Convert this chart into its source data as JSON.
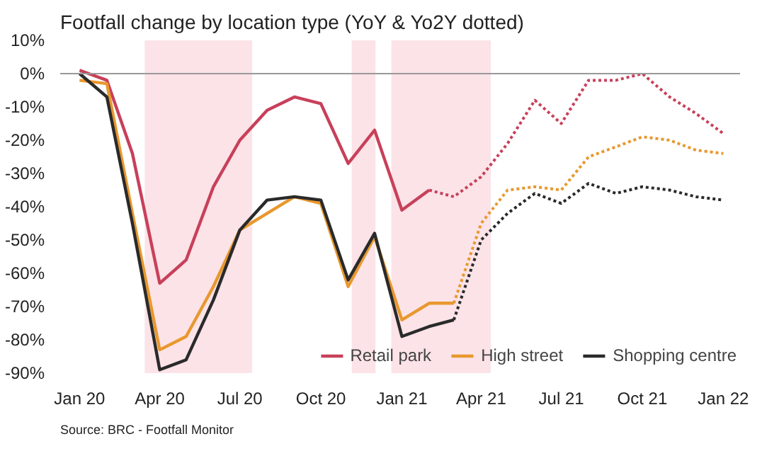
{
  "chart_data": {
    "type": "line",
    "title": "Footfall change by location type (YoY & Yo2Y dotted)",
    "annotations": [
      "Source: BRC - Footfall Monitor"
    ],
    "ylim": [
      -90,
      10
    ],
    "yticks": [
      {
        "value": 10,
        "label": "10%"
      },
      {
        "value": 0,
        "label": "0%"
      },
      {
        "value": -10,
        "label": "-10%"
      },
      {
        "value": -20,
        "label": "-20%"
      },
      {
        "value": -30,
        "label": "-30%"
      },
      {
        "value": -40,
        "label": "-40%"
      },
      {
        "value": -50,
        "label": "-50%"
      },
      {
        "value": -60,
        "label": "-60%"
      },
      {
        "value": -70,
        "label": "-70%"
      },
      {
        "value": -80,
        "label": "-80%"
      },
      {
        "value": -90,
        "label": "-90%"
      }
    ],
    "xlim": [
      "2019-12-10",
      "2022-01-20"
    ],
    "xticks": [
      {
        "value": "2020-01",
        "label": "Jan 20"
      },
      {
        "value": "2020-04",
        "label": "Apr 20"
      },
      {
        "value": "2020-07",
        "label": "Jul 20"
      },
      {
        "value": "2020-10",
        "label": "Oct 20"
      },
      {
        "value": "2021-01",
        "label": "Jan 21"
      },
      {
        "value": "2021-04",
        "label": "Apr 21"
      },
      {
        "value": "2021-07",
        "label": "Jul 21"
      },
      {
        "value": "2021-10",
        "label": "Oct 21"
      },
      {
        "value": "2022-01",
        "label": "Jan 22"
      }
    ],
    "grid": false,
    "legend": "bottom right",
    "ref_lines": [
      {
        "axis": "y",
        "value": 0,
        "color": "#999999"
      }
    ],
    "bands": [
      {
        "axis": "x",
        "from": "2020-03-15",
        "to": "2020-07-15",
        "color": "#fbe3e8"
      },
      {
        "axis": "x",
        "from": "2020-11-05",
        "to": "2020-12-02",
        "color": "#fbe3e8"
      },
      {
        "axis": "x",
        "from": "2020-12-20",
        "to": "2021-04-12",
        "color": "#fbe3e8"
      }
    ],
    "series": [
      {
        "name": "Retail park",
        "color": "#c8405a",
        "line_style": "solid",
        "x": [
          "2020-01",
          "2020-02",
          "2020-03",
          "2020-04",
          "2020-05",
          "2020-06",
          "2020-07",
          "2020-08",
          "2020-09",
          "2020-10",
          "2020-11",
          "2020-12",
          "2021-01",
          "2021-02"
        ],
        "values": [
          1,
          -2,
          -24,
          -63,
          -56,
          -34,
          -20,
          -11,
          -7,
          -9,
          -27,
          -17,
          -41,
          -35
        ]
      },
      {
        "name": "High street",
        "color": "#e8982e",
        "line_style": "solid",
        "x": [
          "2020-01",
          "2020-02",
          "2020-03",
          "2020-04",
          "2020-05",
          "2020-06",
          "2020-07",
          "2020-08",
          "2020-09",
          "2020-10",
          "2020-11",
          "2020-12",
          "2021-01",
          "2021-02",
          "2021-03"
        ],
        "values": [
          -2,
          -3,
          -42,
          -83,
          -79,
          -64,
          -47,
          -42,
          -37,
          -39,
          -64,
          -49,
          -74,
          -69,
          -69
        ]
      },
      {
        "name": "Shopping centre",
        "color": "#2a2a2a",
        "line_style": "solid",
        "x": [
          "2020-01",
          "2020-02",
          "2020-03",
          "2020-04",
          "2020-05",
          "2020-06",
          "2020-07",
          "2020-08",
          "2020-09",
          "2020-10",
          "2020-11",
          "2020-12",
          "2021-01",
          "2021-02",
          "2021-03"
        ],
        "values": [
          0,
          -7,
          -45,
          -89,
          -86,
          -68,
          -47,
          -38,
          -37,
          -38,
          -62,
          -48,
          -79,
          -76,
          -74
        ]
      },
      {
        "color": "#c8405a",
        "line_style": "dotted",
        "x": [
          "2021-02",
          "2021-03",
          "2021-04",
          "2021-05",
          "2021-06",
          "2021-07",
          "2021-08",
          "2021-09",
          "2021-10",
          "2021-11",
          "2021-12",
          "2022-01"
        ],
        "values": [
          -35,
          -37,
          -31,
          -21,
          -8,
          -15,
          -2,
          -2,
          0,
          -7,
          -12,
          -18
        ]
      },
      {
        "color": "#e8982e",
        "line_style": "dotted",
        "x": [
          "2021-03",
          "2021-04",
          "2021-05",
          "2021-06",
          "2021-07",
          "2021-08",
          "2021-09",
          "2021-10",
          "2021-11",
          "2021-12",
          "2022-01"
        ],
        "values": [
          -69,
          -45,
          -35,
          -34,
          -35,
          -25,
          -22,
          -19,
          -20,
          -23,
          -24
        ]
      },
      {
        "color": "#2a2a2a",
        "line_style": "dotted",
        "x": [
          "2021-03",
          "2021-04",
          "2021-05",
          "2021-06",
          "2021-07",
          "2021-08",
          "2021-09",
          "2021-10",
          "2021-11",
          "2021-12",
          "2022-01"
        ],
        "values": [
          -74,
          -50,
          -42,
          -36,
          -39,
          -33,
          -36,
          -34,
          -35,
          -37,
          -38
        ]
      }
    ]
  }
}
